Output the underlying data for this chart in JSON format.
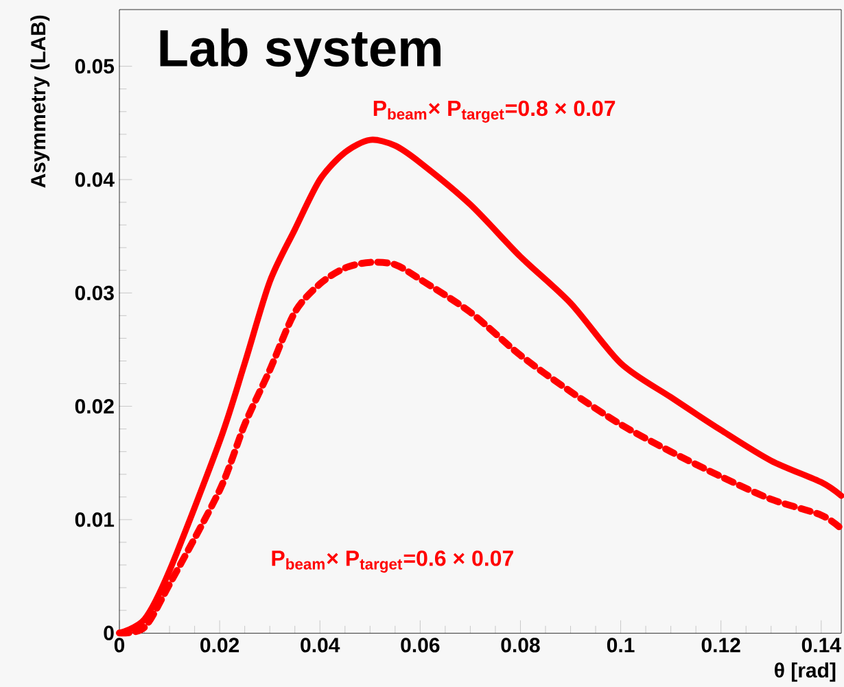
{
  "chart_data": {
    "type": "line",
    "title": "Lab system",
    "xlabel": "θ [rad]",
    "ylabel": "Asymmetry (LAB)",
    "xlim": [
      0,
      0.144
    ],
    "ylim": [
      0,
      0.055
    ],
    "xticks": [
      0,
      0.02,
      0.04,
      0.06,
      0.08,
      0.1,
      0.12,
      0.14
    ],
    "yticks": [
      0,
      0.01,
      0.02,
      0.03,
      0.04,
      0.05
    ],
    "grid": false,
    "marker": "none",
    "annotations": [
      "P$_{beam}$× P$_{target}$=0.8 × 0.07",
      "P$_{beam}$× P$_{target}$=0.6 × 0.07"
    ],
    "x": [
      0,
      0.005,
      0.01,
      0.02,
      0.025,
      0.03,
      0.035,
      0.04,
      0.045,
      0.05,
      0.055,
      0.06,
      0.07,
      0.08,
      0.09,
      0.1,
      0.11,
      0.12,
      0.13,
      0.14,
      0.144
    ],
    "series": [
      {
        "color": "#ff0000",
        "line_style": "solid",
        "values": [
          0,
          0.0012,
          0.0055,
          0.0169,
          0.0238,
          0.031,
          0.0356,
          0.04,
          0.0424,
          0.0435,
          0.043,
          0.0415,
          0.0378,
          0.0332,
          0.0291,
          0.0238,
          0.0208,
          0.0179,
          0.0152,
          0.0133,
          0.0121
        ]
      },
      {
        "color": "#ff0000",
        "line_style": "dashed",
        "values": [
          0,
          0.0005,
          0.0043,
          0.0126,
          0.0184,
          0.0232,
          0.0283,
          0.0308,
          0.0322,
          0.0327,
          0.0325,
          0.0312,
          0.0283,
          0.0245,
          0.0213,
          0.0184,
          0.016,
          0.0138,
          0.0118,
          0.0104,
          0.0092
        ]
      }
    ]
  }
}
